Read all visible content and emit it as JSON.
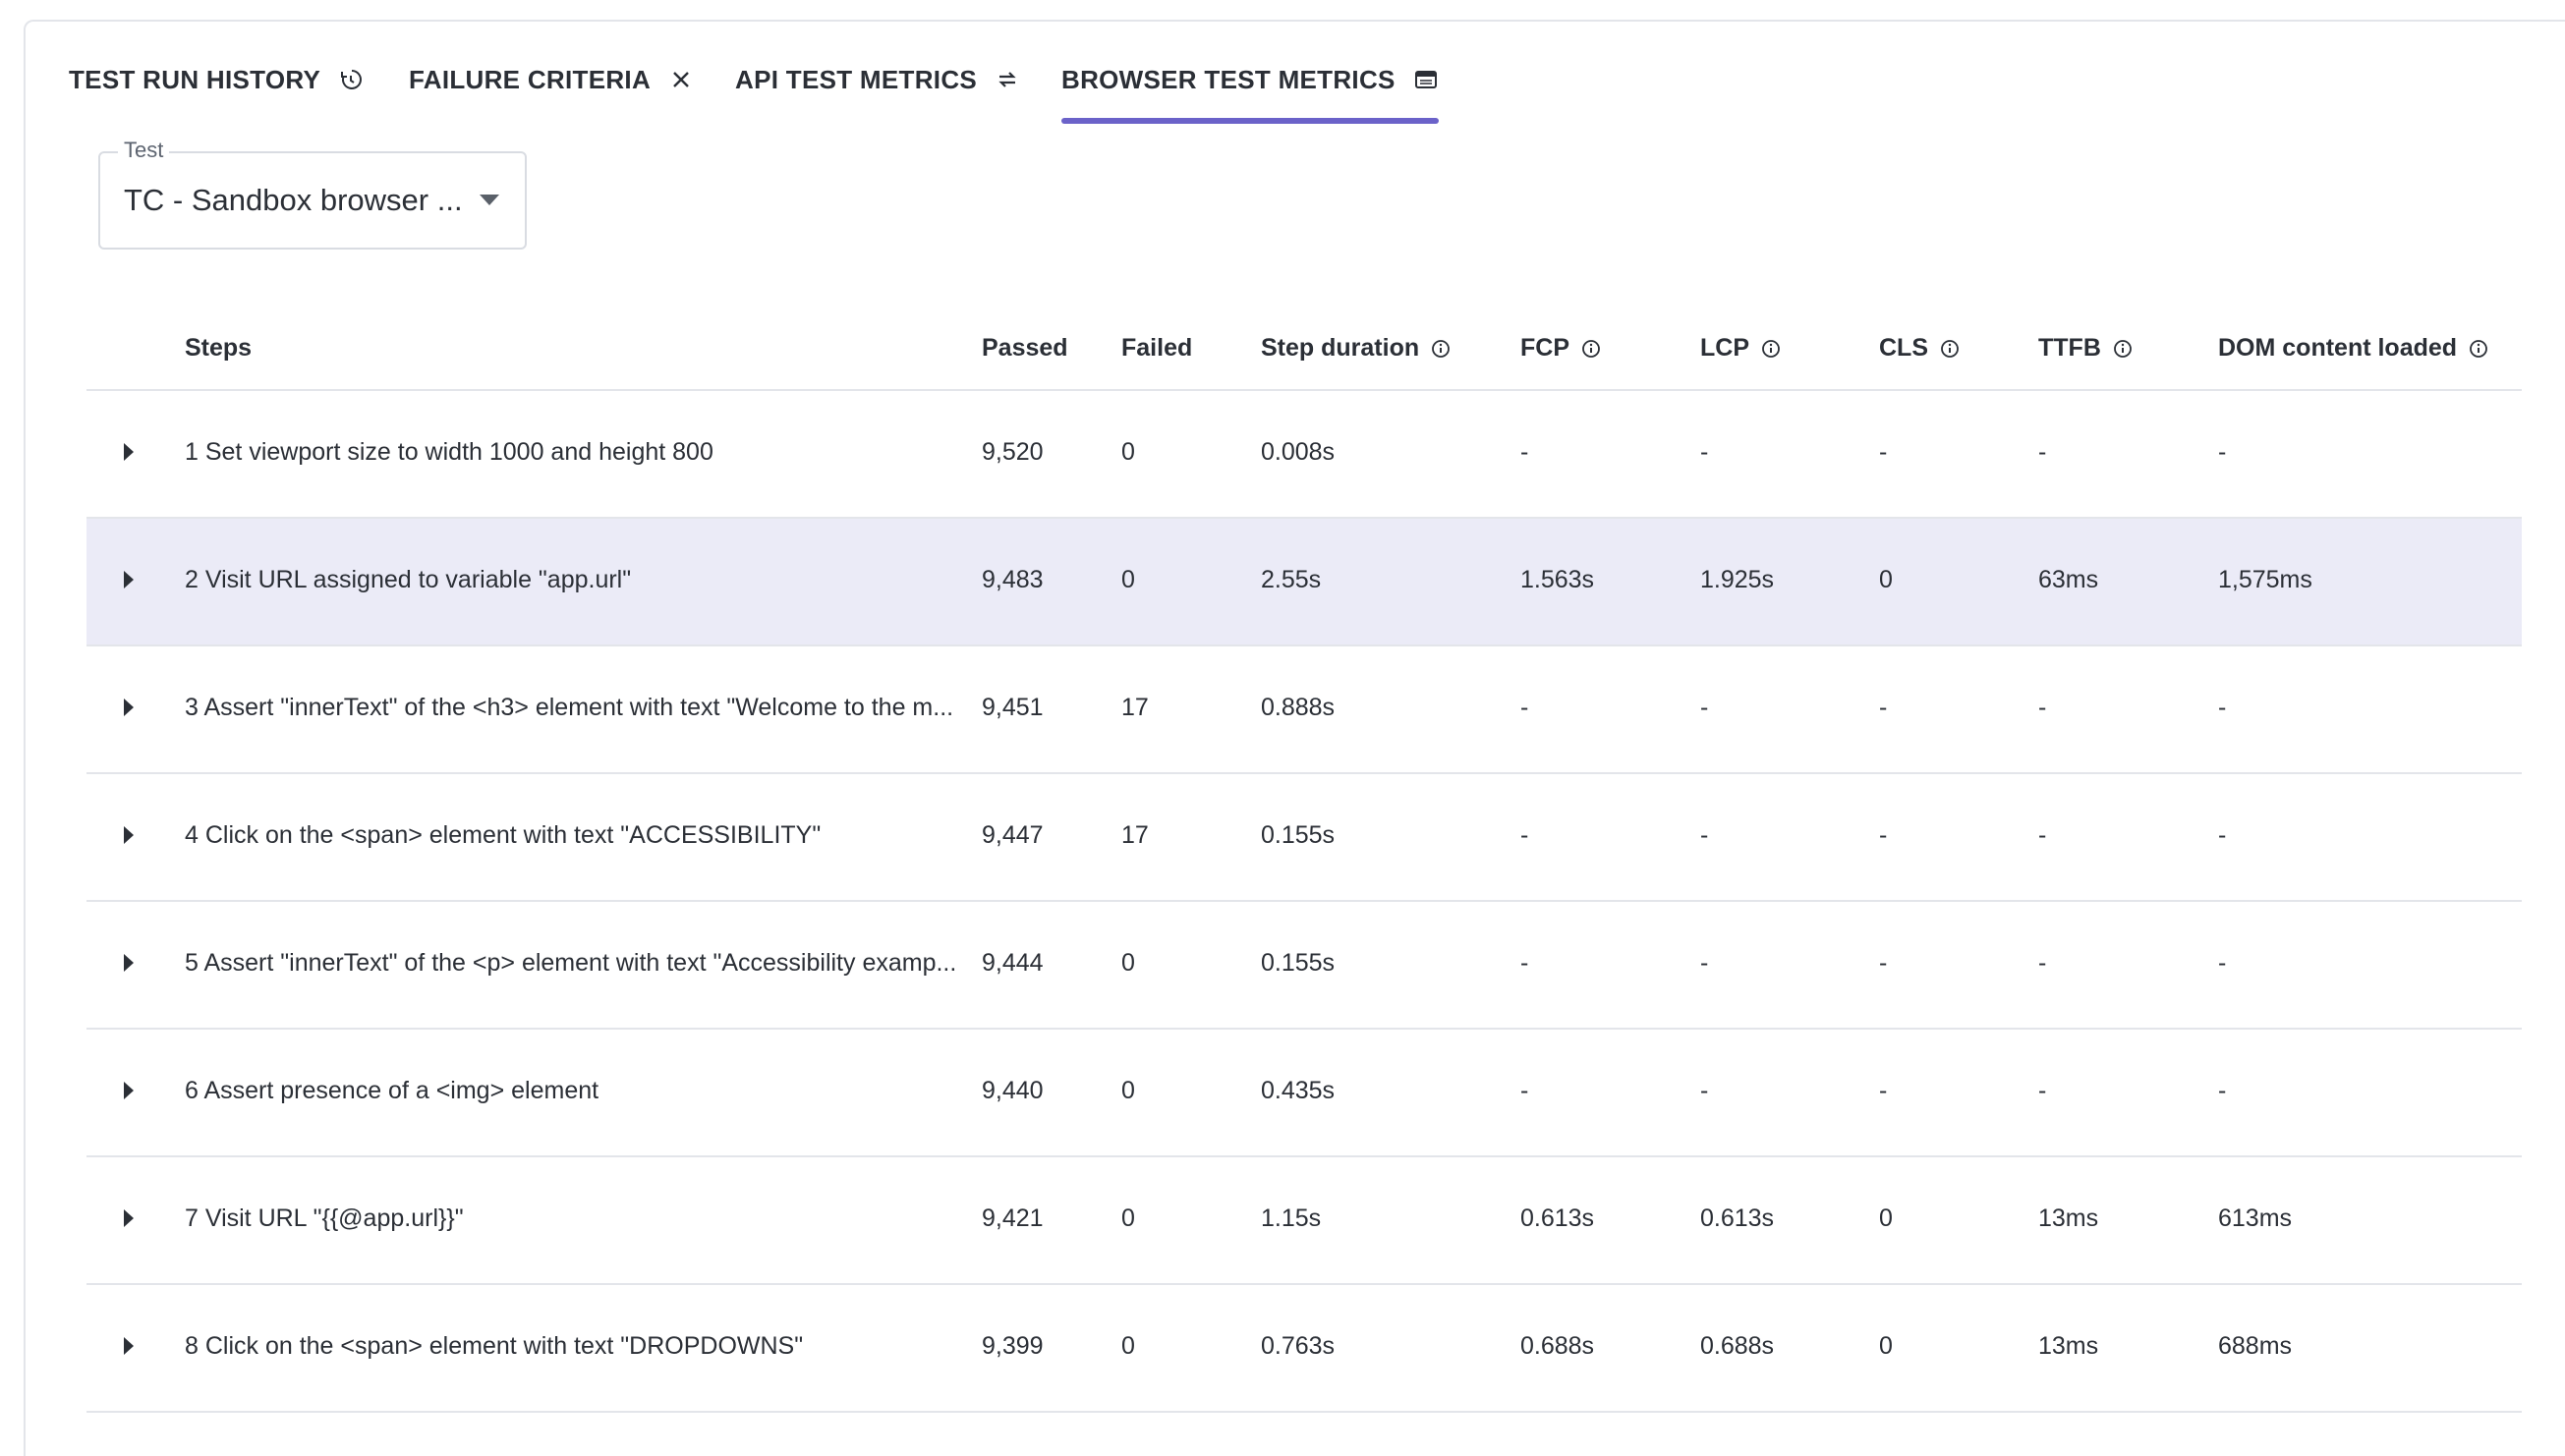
{
  "tabs": [
    {
      "label": "TEST RUN HISTORY",
      "icon": "history-icon",
      "active": false
    },
    {
      "label": "FAILURE CRITERIA",
      "icon": "close-icon",
      "active": false
    },
    {
      "label": "API TEST METRICS",
      "icon": "swap-arrows-icon",
      "active": false
    },
    {
      "label": "BROWSER TEST METRICS",
      "icon": "browser-window-icon",
      "active": true
    }
  ],
  "test_select": {
    "label": "Test",
    "value": "TC - Sandbox browser ..."
  },
  "table": {
    "headers": {
      "steps": "Steps",
      "passed": "Passed",
      "failed": "Failed",
      "step_duration": "Step duration",
      "fcp": "FCP",
      "lcp": "LCP",
      "cls": "CLS",
      "ttfb": "TTFB",
      "dom": "DOM content loaded"
    },
    "rows": [
      {
        "step": "1 Set viewport size to width 1000 and height 800",
        "passed": "9,520",
        "failed": "0",
        "duration": "0.008s",
        "fcp": "-",
        "lcp": "-",
        "cls": "-",
        "ttfb": "-",
        "dom": "-"
      },
      {
        "step": "2 Visit URL assigned to variable \"app.url\"",
        "passed": "9,483",
        "failed": "0",
        "duration": "2.55s",
        "fcp": "1.563s",
        "lcp": "1.925s",
        "cls": "0",
        "ttfb": "63ms",
        "dom": "1,575ms"
      },
      {
        "step": "3 Assert \"innerText\" of the <h3> element with text \"Welcome to the m...",
        "passed": "9,451",
        "failed": "17",
        "duration": "0.888s",
        "fcp": "-",
        "lcp": "-",
        "cls": "-",
        "ttfb": "-",
        "dom": "-"
      },
      {
        "step": "4 Click on the <span> element with text \"ACCESSIBILITY\"",
        "passed": "9,447",
        "failed": "17",
        "duration": "0.155s",
        "fcp": "-",
        "lcp": "-",
        "cls": "-",
        "ttfb": "-",
        "dom": "-"
      },
      {
        "step": "5 Assert \"innerText\" of the <p> element with text \"Accessibility examp...",
        "passed": "9,444",
        "failed": "0",
        "duration": "0.155s",
        "fcp": "-",
        "lcp": "-",
        "cls": "-",
        "ttfb": "-",
        "dom": "-"
      },
      {
        "step": "6 Assert presence of a <img> element",
        "passed": "9,440",
        "failed": "0",
        "duration": "0.435s",
        "fcp": "-",
        "lcp": "-",
        "cls": "-",
        "ttfb": "-",
        "dom": "-"
      },
      {
        "step": "7 Visit URL \"{{@app.url}}\"",
        "passed": "9,421",
        "failed": "0",
        "duration": "1.15s",
        "fcp": "0.613s",
        "lcp": "0.613s",
        "cls": "0",
        "ttfb": "13ms",
        "dom": "613ms"
      },
      {
        "step": "8 Click on the <span> element with text \"DROPDOWNS\"",
        "passed": "9,399",
        "failed": "0",
        "duration": "0.763s",
        "fcp": "0.688s",
        "lcp": "0.688s",
        "cls": "0",
        "ttfb": "13ms",
        "dom": "688ms"
      }
    ]
  },
  "colors": {
    "accent": "#6b62c9",
    "row_highlight": "#ebebf7",
    "border": "#e3e5ea"
  }
}
